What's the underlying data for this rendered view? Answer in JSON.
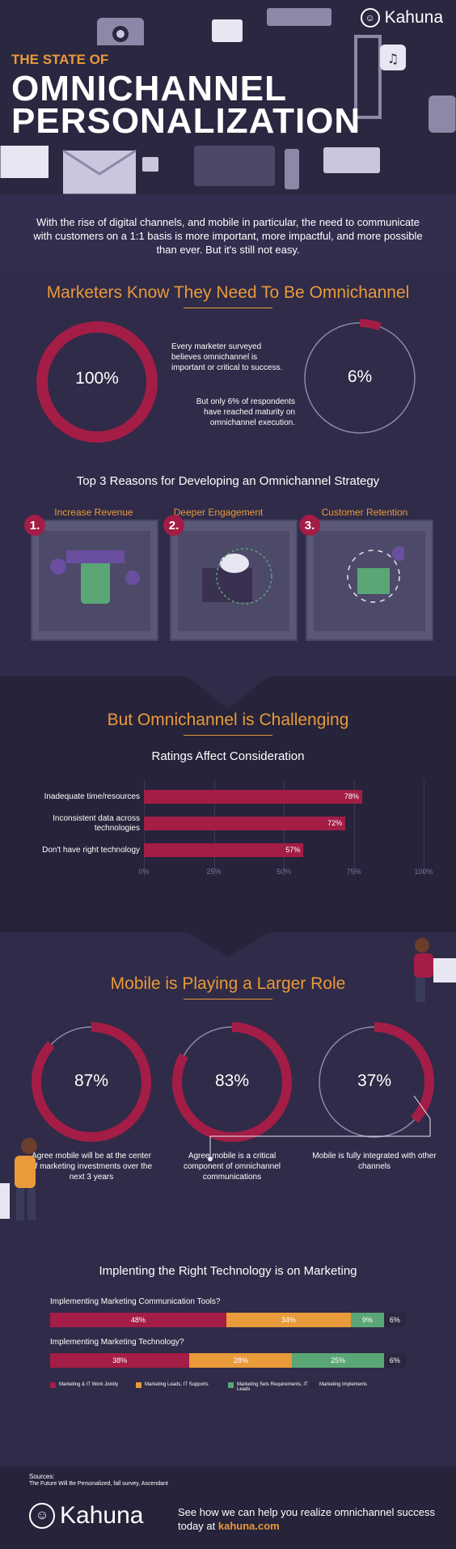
{
  "header": {
    "kicker": "THE STATE OF",
    "title_line1": "OMNICHANNEL",
    "title_line2": "PERSONALIZATION",
    "brand": "Kahuna"
  },
  "intro": "With the rise of digital channels, and mobile in particular, the need to communicate with customers on a 1:1 basis is more important, more impactful, and more possible than ever.  But it's still not easy.",
  "section1": {
    "heading": "Marketers Know They Need To Be Omnichannel",
    "stat1": {
      "value": "100%",
      "text": "Every marketer surveyed believes omnichannel is important or critical to success.",
      "fraction": 1.0
    },
    "stat2": {
      "value": "6%",
      "text": "But only 6% of respondents have reached maturity on omnichannel execution.",
      "fraction": 0.06
    },
    "reasons_title": "Top 3 Reasons for Developing an Omnichannel Strategy",
    "reasons": [
      {
        "num": "1.",
        "label": "Increase Revenue"
      },
      {
        "num": "2.",
        "label": "Deeper Engagement"
      },
      {
        "num": "3.",
        "label": "Customer Retention"
      }
    ]
  },
  "section2": {
    "heading": "But Omnichannel is Challenging",
    "subheading": "Ratings Affect Consideration"
  },
  "chart_data": {
    "type": "bar",
    "title": "Ratings Affect Consideration",
    "categories": [
      "Inadequate time/resources",
      "Inconsistent data across technologies",
      "Don't have right technology"
    ],
    "values": [
      78,
      72,
      57
    ],
    "value_labels": [
      "78%",
      "72%",
      "57%"
    ],
    "ticks": [
      "0%",
      "25%",
      "50%",
      "75%",
      "100%"
    ],
    "xlim": [
      0,
      100
    ]
  },
  "section3": {
    "heading": "Mobile is Playing a Larger Role",
    "stats": [
      {
        "value": "87%",
        "text": "Agree mobile will be at the center of marketing investments over the next 3 years",
        "fraction": 0.87
      },
      {
        "value": "83%",
        "text": "Agree mobile is a critical component of omnichannel communications",
        "fraction": 0.83
      },
      {
        "value": "37%",
        "text": "Mobile is fully integrated with other channels",
        "fraction": 0.37
      }
    ]
  },
  "section4": {
    "heading": "Implenting the Right Technology is on Marketing",
    "rows": [
      {
        "label": "Implementing Marketing Communication Tools?",
        "values": [
          48,
          34,
          9,
          6
        ],
        "texts": [
          "48%",
          "34%",
          "9%",
          "6%"
        ]
      },
      {
        "label": "Implementing Marketing Technology?",
        "values": [
          38,
          28,
          25,
          6
        ],
        "texts": [
          "38%",
          "28%",
          "25%",
          "6%"
        ]
      }
    ],
    "legend": [
      "Marketing & IT Work Jointly",
      "Marketing Leads, IT Supports",
      "Marketing Sets Requirements, IT Leads",
      "Marketing Implements"
    ],
    "colors": [
      "#a31d46",
      "#e99a3a",
      "#5aa676",
      "#2a2740"
    ]
  },
  "footer": {
    "sources_label": "Sources:",
    "sources": "The Future Will Be Personalized, fall survey, Ascendant",
    "brand": "Kahuna",
    "cta_line1": "See how we can help you realize omnichannel success",
    "cta_prefix": "today at ",
    "cta_link": "kahuna.com"
  }
}
